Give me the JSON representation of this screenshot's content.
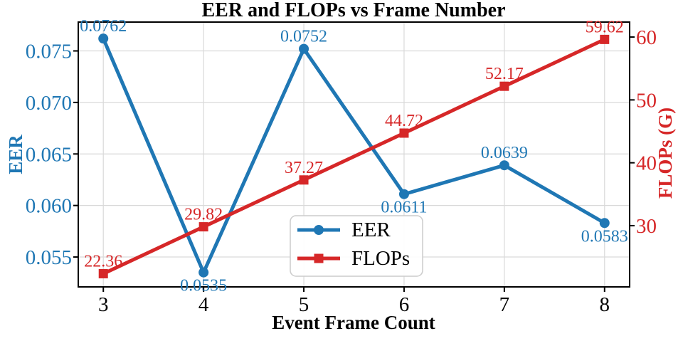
{
  "chart_data": {
    "type": "line",
    "title": "EER and FLOPs vs Frame Number",
    "xlabel": "Event Frame Count",
    "ylabel_left": "EER",
    "ylabel_right": "FLOPs (G)",
    "x": [
      3,
      4,
      5,
      6,
      7,
      8
    ],
    "xlim": [
      2.75,
      8.25
    ],
    "xticks": [
      3,
      4,
      5,
      6,
      7,
      8
    ],
    "xtick_labels": [
      "3",
      "4",
      "5",
      "6",
      "7",
      "8"
    ],
    "grid": true,
    "grid_color": "#d9d9d9",
    "background_color": "#ffffff",
    "spine_color": "#000000",
    "legend": {
      "position": "lower-center-inside",
      "entries": [
        "EER",
        "FLOPs"
      ]
    },
    "axes": {
      "left": {
        "lim": [
          0.0521,
          0.0778
        ],
        "ticks": [
          0.055,
          0.06,
          0.065,
          0.07,
          0.075
        ],
        "tick_labels": [
          "0.055",
          "0.060",
          "0.065",
          "0.070",
          "0.075"
        ],
        "color": "#1f77b4"
      },
      "right": {
        "lim": [
          20.26,
          62.38
        ],
        "ticks": [
          30,
          40,
          50,
          60
        ],
        "tick_labels": [
          "30",
          "40",
          "50",
          "60"
        ],
        "color": "#d62728"
      }
    },
    "series": [
      {
        "name": "EER",
        "axis": "left",
        "color": "#1f77b4",
        "marker": "circle",
        "values": [
          0.0762,
          0.0535,
          0.0752,
          0.0611,
          0.0639,
          0.0583
        ],
        "point_labels": [
          "0.0762",
          "0.0535",
          "0.0752",
          "0.0611",
          "0.0639",
          "0.0583"
        ],
        "label_placement": [
          "above",
          "below",
          "above",
          "below",
          "above",
          "below"
        ]
      },
      {
        "name": "FLOPs",
        "axis": "right",
        "color": "#d62728",
        "marker": "square",
        "values": [
          22.36,
          29.82,
          37.27,
          44.72,
          52.17,
          59.62
        ],
        "point_labels": [
          "22.36",
          "29.82",
          "37.27",
          "44.72",
          "52.17",
          "59.62"
        ],
        "label_placement": [
          "above",
          "above",
          "above",
          "above",
          "above",
          "above"
        ]
      }
    ]
  }
}
